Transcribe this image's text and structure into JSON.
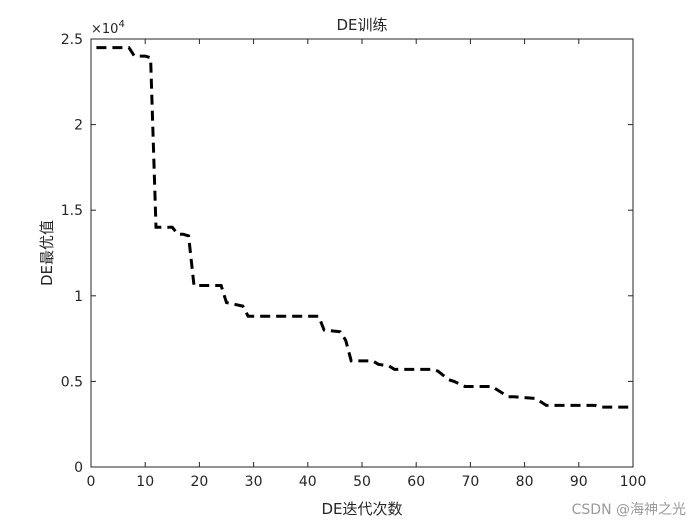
{
  "chart_data": {
    "type": "line",
    "title": "DE训练",
    "xlabel": "DE迭代次数",
    "ylabel": "DE最优值",
    "xlim": [
      0,
      100
    ],
    "ylim": [
      0,
      25000
    ],
    "xticks": [
      0,
      10,
      20,
      30,
      40,
      50,
      60,
      70,
      80,
      90,
      100
    ],
    "yticks": [
      0,
      5000,
      10000,
      15000,
      20000,
      25000
    ],
    "ytick_labels": [
      "0",
      "0.5",
      "1",
      "1.5",
      "2",
      "2.5"
    ],
    "xtick_labels": [
      "0",
      "10",
      "20",
      "30",
      "40",
      "50",
      "60",
      "70",
      "80",
      "90",
      "100"
    ],
    "y_exponent_label": "×10",
    "y_exponent_power": "4",
    "grid": false,
    "line_style": "dashed",
    "line_color": "#000000",
    "x": [
      1,
      7,
      8,
      10,
      11,
      12,
      15,
      16,
      17,
      18,
      19,
      24,
      25,
      28,
      29,
      41,
      42,
      43,
      46,
      47,
      48,
      52,
      53,
      55,
      56,
      63,
      64,
      66,
      67,
      69,
      70,
      74,
      75,
      77,
      78,
      82,
      83,
      84,
      85,
      93,
      94,
      100
    ],
    "y": [
      24500,
      24500,
      24000,
      24000,
      23900,
      14000,
      14000,
      13600,
      13600,
      13500,
      10600,
      10600,
      9600,
      9400,
      8800,
      8800,
      8800,
      8000,
      7900,
      7400,
      6200,
      6200,
      6000,
      5900,
      5700,
      5700,
      5600,
      5100,
      5000,
      4700,
      4700,
      4700,
      4500,
      4100,
      4100,
      4000,
      3800,
      3600,
      3600,
      3600,
      3500,
      3500
    ]
  },
  "watermark": "CSDN @海神之光"
}
